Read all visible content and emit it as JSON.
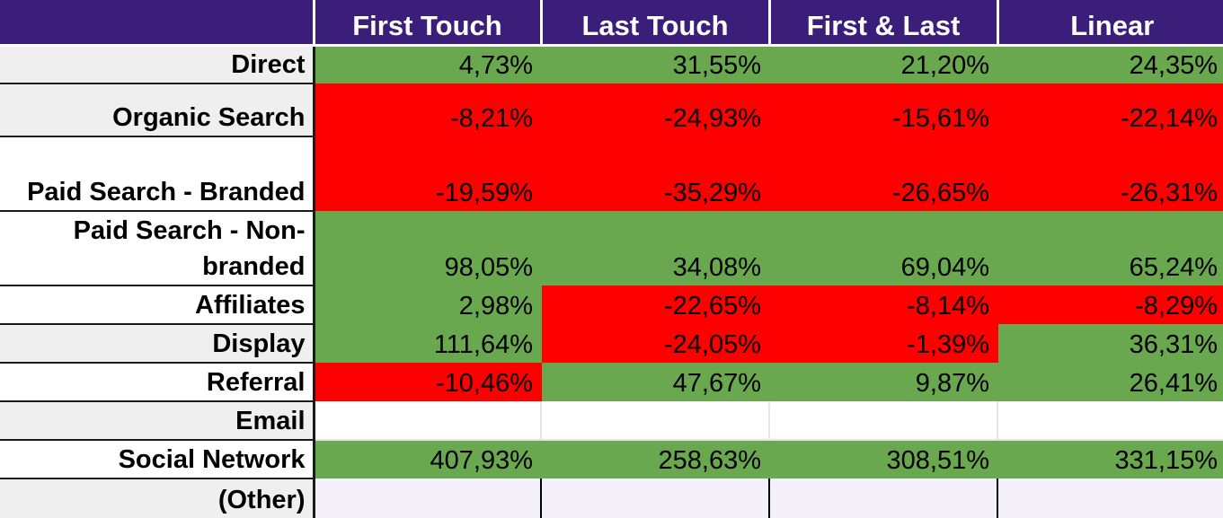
{
  "chart_data": {
    "type": "table",
    "columns": [
      "",
      "First Touch",
      "Last Touch",
      "First & Last",
      "Linear"
    ],
    "rows": [
      {
        "label": "Direct",
        "values": [
          "4,73%",
          "31,55%",
          "21,20%",
          "24,35%"
        ],
        "status": [
          "pos",
          "pos",
          "pos",
          "pos"
        ]
      },
      {
        "label": "Organic Search",
        "values": [
          "-8,21%",
          "-24,93%",
          "-15,61%",
          "-22,14%"
        ],
        "status": [
          "neg",
          "neg",
          "neg",
          "neg"
        ]
      },
      {
        "label": "Paid Search - Branded",
        "values": [
          "-19,59%",
          "-35,29%",
          "-26,65%",
          "-26,31%"
        ],
        "status": [
          "neg",
          "neg",
          "neg",
          "neg"
        ]
      },
      {
        "label": "Paid Search - Non-branded",
        "values": [
          "98,05%",
          "34,08%",
          "69,04%",
          "65,24%"
        ],
        "status": [
          "pos",
          "pos",
          "pos",
          "pos"
        ]
      },
      {
        "label": "Affiliates",
        "values": [
          "2,98%",
          "-22,65%",
          "-8,14%",
          "-8,29%"
        ],
        "status": [
          "pos",
          "neg",
          "neg",
          "neg"
        ]
      },
      {
        "label": "Display",
        "values": [
          "111,64%",
          "-24,05%",
          "-1,39%",
          "36,31%"
        ],
        "status": [
          "pos",
          "neg",
          "neg",
          "pos"
        ]
      },
      {
        "label": "Referral",
        "values": [
          "-10,46%",
          "47,67%",
          "9,87%",
          "26,41%"
        ],
        "status": [
          "neg",
          "pos",
          "pos",
          "pos"
        ]
      },
      {
        "label": "Email",
        "values": [
          "",
          "",
          "",
          ""
        ],
        "status": [
          "empty",
          "empty",
          "empty",
          "empty"
        ]
      },
      {
        "label": "Social Network",
        "values": [
          "407,93%",
          "258,63%",
          "308,51%",
          "331,15%"
        ],
        "status": [
          "pos",
          "pos",
          "pos",
          "pos"
        ]
      },
      {
        "label": "(Other)",
        "values": [
          "",
          "",
          "",
          ""
        ],
        "status": [
          "empty",
          "empty",
          "empty",
          "empty"
        ]
      }
    ]
  },
  "colors": {
    "header_bg": "#3a1e79",
    "positive": "#6aa84f",
    "negative": "#ff0000",
    "row_label_shade": "#efefef"
  }
}
